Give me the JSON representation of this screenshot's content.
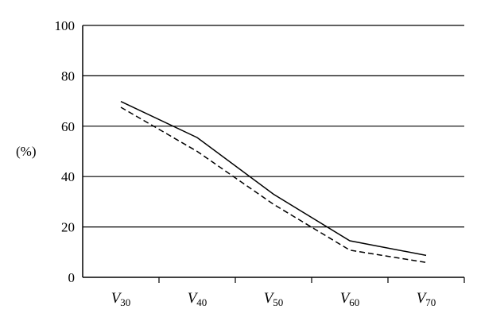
{
  "chart_data": {
    "type": "line",
    "ylabel": "(%)",
    "ylim": [
      0,
      100
    ],
    "yticks": [
      "0",
      "20",
      "40",
      "60",
      "80",
      "100"
    ],
    "grid": true,
    "categories": [
      {
        "main": "V",
        "sub": "30"
      },
      {
        "main": "V",
        "sub": "40"
      },
      {
        "main": "V",
        "sub": "50"
      },
      {
        "main": "V",
        "sub": "60"
      },
      {
        "main": "V",
        "sub": "70"
      }
    ],
    "series": [
      {
        "style": "solid",
        "color": "#000000",
        "values": [
          69.8,
          55.5,
          33.0,
          14.5,
          8.7
        ]
      },
      {
        "style": "dashed",
        "color": "#000000",
        "values": [
          67.5,
          50.0,
          29.0,
          10.8,
          5.9
        ]
      }
    ]
  }
}
